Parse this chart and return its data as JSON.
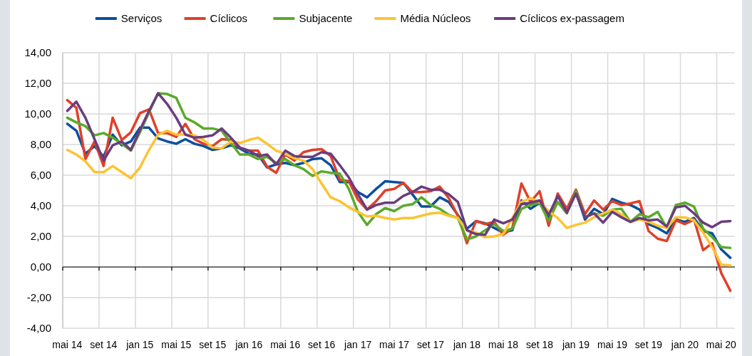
{
  "chart_data": {
    "type": "line",
    "categories": [
      "mai 14",
      null,
      null,
      null,
      "set 14",
      null,
      null,
      null,
      "jan 15",
      null,
      null,
      null,
      "mai 15",
      null,
      null,
      null,
      "set 15",
      null,
      null,
      null,
      "jan 16",
      null,
      null,
      null,
      "mai 16",
      null,
      null,
      null,
      "set 16",
      null,
      null,
      null,
      "jan 17",
      null,
      null,
      null,
      "mai 17",
      null,
      null,
      null,
      "set 17",
      null,
      null,
      null,
      "jan 18",
      null,
      null,
      null,
      "mai 18",
      null,
      null,
      null,
      "set 18",
      null,
      null,
      null,
      "jan 19",
      null,
      null,
      null,
      "mai 19",
      null,
      null,
      null,
      "set 19",
      null,
      null,
      null,
      "jan 20",
      null,
      null,
      null,
      "mai 20",
      null
    ],
    "series": [
      {
        "name": "Serviços",
        "color": "#0b4f9c",
        "values": [
          9.35,
          8.9,
          7.4,
          7.9,
          7.2,
          8.65,
          7.95,
          8.2,
          9.1,
          9.1,
          8.4,
          8.2,
          8.05,
          8.35,
          8.05,
          7.9,
          7.65,
          7.75,
          7.95,
          7.75,
          7.4,
          7.35,
          6.5,
          6.7,
          6.8,
          6.65,
          6.8,
          7.05,
          7.1,
          6.65,
          5.55,
          5.55,
          4.9,
          4.55,
          5.1,
          5.6,
          5.55,
          5.5,
          4.75,
          3.95,
          3.95,
          4.55,
          4.25,
          3.4,
          2.5,
          3.0,
          2.85,
          2.55,
          2.25,
          2.4,
          4.35,
          3.8,
          4.2,
          3.25,
          4.65,
          3.65,
          4.9,
          3.1,
          3.8,
          3.45,
          4.45,
          4.2,
          4.05,
          3.75,
          2.8,
          2.55,
          2.2,
          3.1,
          2.95,
          3.2,
          2.35,
          2.2,
          1.15,
          0.6
        ]
      },
      {
        "name": "Cíclicos",
        "color": "#e0402a",
        "values": [
          10.9,
          10.4,
          7.05,
          8.2,
          6.6,
          9.75,
          8.3,
          8.8,
          10.05,
          10.3,
          8.75,
          8.75,
          8.5,
          9.35,
          8.35,
          8.05,
          7.9,
          8.35,
          8.3,
          7.8,
          7.6,
          7.6,
          6.55,
          6.15,
          7.35,
          6.95,
          7.5,
          7.65,
          7.7,
          7.25,
          5.7,
          5.6,
          4.4,
          3.75,
          4.3,
          5.0,
          5.1,
          5.5,
          4.9,
          4.9,
          4.95,
          5.25,
          4.5,
          3.35,
          1.55,
          3.0,
          2.8,
          2.95,
          2.1,
          2.55,
          5.45,
          4.25,
          4.95,
          2.7,
          4.8,
          3.8,
          5.05,
          3.45,
          4.35,
          3.75,
          4.3,
          4.05,
          4.15,
          4.3,
          2.35,
          1.85,
          1.7,
          3.05,
          2.8,
          3.1,
          1.1,
          1.55,
          -0.4,
          -1.55
        ]
      },
      {
        "name": "Subjacente",
        "color": "#5aaa2a",
        "values": [
          9.75,
          9.45,
          9.2,
          8.6,
          8.75,
          8.45,
          8.05,
          7.6,
          8.8,
          10.1,
          11.35,
          11.3,
          11.05,
          9.75,
          9.45,
          9.05,
          9.05,
          8.9,
          8.1,
          7.35,
          7.35,
          7.05,
          7.2,
          6.8,
          7.05,
          6.65,
          6.4,
          5.95,
          6.25,
          6.15,
          6.1,
          5.1,
          3.6,
          2.75,
          3.45,
          3.85,
          3.65,
          4.0,
          4.1,
          4.55,
          4.05,
          3.8,
          3.4,
          3.2,
          1.8,
          2.0,
          2.4,
          2.8,
          2.35,
          2.5,
          3.8,
          4.05,
          4.2,
          3.0,
          4.25,
          3.5,
          4.95,
          3.25,
          3.5,
          3.35,
          3.75,
          3.8,
          2.95,
          3.45,
          3.25,
          3.6,
          2.55,
          4.05,
          4.2,
          3.95,
          2.5,
          1.95,
          1.3,
          1.25
        ]
      },
      {
        "name": "Média Núcleos",
        "color": "#fdc332",
        "values": [
          7.65,
          7.35,
          6.9,
          6.2,
          6.2,
          6.6,
          6.2,
          5.8,
          6.5,
          7.65,
          8.65,
          8.9,
          8.65,
          8.65,
          8.6,
          8.3,
          7.8,
          7.75,
          8.2,
          8.1,
          8.3,
          8.45,
          8.05,
          7.6,
          7.4,
          7.1,
          6.95,
          6.4,
          5.45,
          4.55,
          4.3,
          3.9,
          3.6,
          3.3,
          3.35,
          3.2,
          3.1,
          3.2,
          3.2,
          3.35,
          3.5,
          3.55,
          3.35,
          3.2,
          2.4,
          2.25,
          1.95,
          2.0,
          2.15,
          3.2,
          4.25,
          4.5,
          4.25,
          3.65,
          3.2,
          2.55,
          2.75,
          2.9,
          3.25,
          3.5,
          3.75,
          3.45,
          2.95,
          3.1,
          2.95,
          2.7,
          2.55,
          3.25,
          3.25,
          3.05,
          2.25,
          1.3,
          0.15,
          0.1
        ]
      },
      {
        "name": "Cíclicos ex-passagem",
        "color": "#6a3d7e",
        "values": [
          10.2,
          10.8,
          9.75,
          8.35,
          6.95,
          7.95,
          8.2,
          7.65,
          8.95,
          10.2,
          11.35,
          10.65,
          9.75,
          8.65,
          8.45,
          8.5,
          8.6,
          9.05,
          8.45,
          7.8,
          7.6,
          7.25,
          7.35,
          6.7,
          7.6,
          7.25,
          7.2,
          7.2,
          7.5,
          7.4,
          6.65,
          5.85,
          4.75,
          3.75,
          4.05,
          4.2,
          4.2,
          4.65,
          4.9,
          5.25,
          5.05,
          5.05,
          4.75,
          4.25,
          2.4,
          2.15,
          2.1,
          3.1,
          2.85,
          3.1,
          4.1,
          4.2,
          4.35,
          3.4,
          4.65,
          3.55,
          4.8,
          3.25,
          3.5,
          2.9,
          3.6,
          3.25,
          2.95,
          3.2,
          3.05,
          3.1,
          2.65,
          3.9,
          4.0,
          3.5,
          2.9,
          2.6,
          2.95,
          3.0
        ]
      }
    ],
    "ylim": [
      -4,
      14
    ],
    "yticks": [
      {
        "value": -4,
        "label": "-4,00"
      },
      {
        "value": -2,
        "label": "-2,00"
      },
      {
        "value": 0,
        "label": "0,00"
      },
      {
        "value": 2,
        "label": "2,00"
      },
      {
        "value": 4,
        "label": "4,00"
      },
      {
        "value": 6,
        "label": "6,00"
      },
      {
        "value": 8,
        "label": "8,00"
      },
      {
        "value": 10,
        "label": "10,00"
      },
      {
        "value": 12,
        "label": "12,00"
      },
      {
        "value": 14,
        "label": "14,00"
      }
    ],
    "grid": true,
    "legend": "top",
    "marker": "none",
    "line_style": "solid"
  }
}
